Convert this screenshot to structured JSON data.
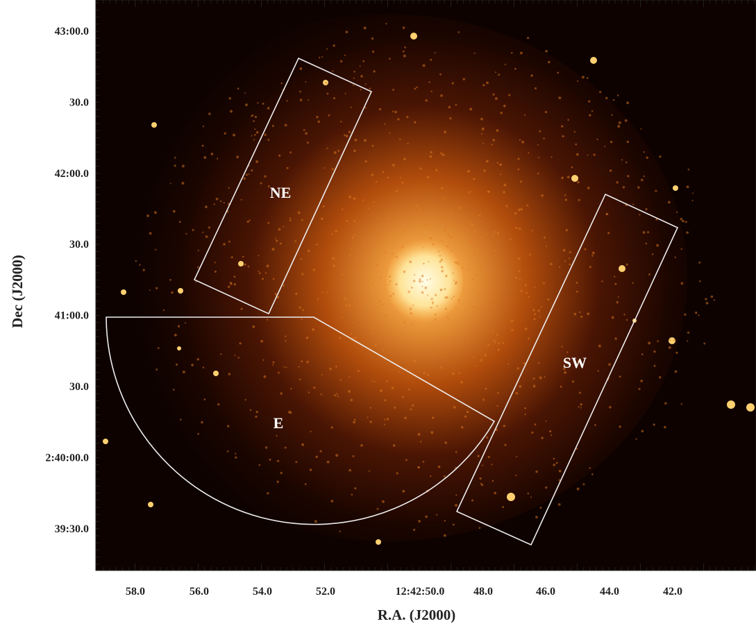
{
  "axes": {
    "x": {
      "label": "R.A. (J2000)",
      "ticks": [
        "58.0",
        "56.0",
        "54.0",
        "52.0",
        "12:42:50.0",
        "48.0",
        "46.0",
        "44.0",
        "42.0"
      ]
    },
    "y": {
      "label": "Dec (J2000)",
      "ticks": [
        "43:00.0",
        "30.0",
        "42:00.0",
        "30.0",
        "41:00.0",
        "30.0",
        "2:40:00.0",
        "39:30.0"
      ]
    }
  },
  "regions": [
    {
      "label": "NE"
    },
    {
      "label": "SW"
    },
    {
      "label": "E"
    }
  ]
}
